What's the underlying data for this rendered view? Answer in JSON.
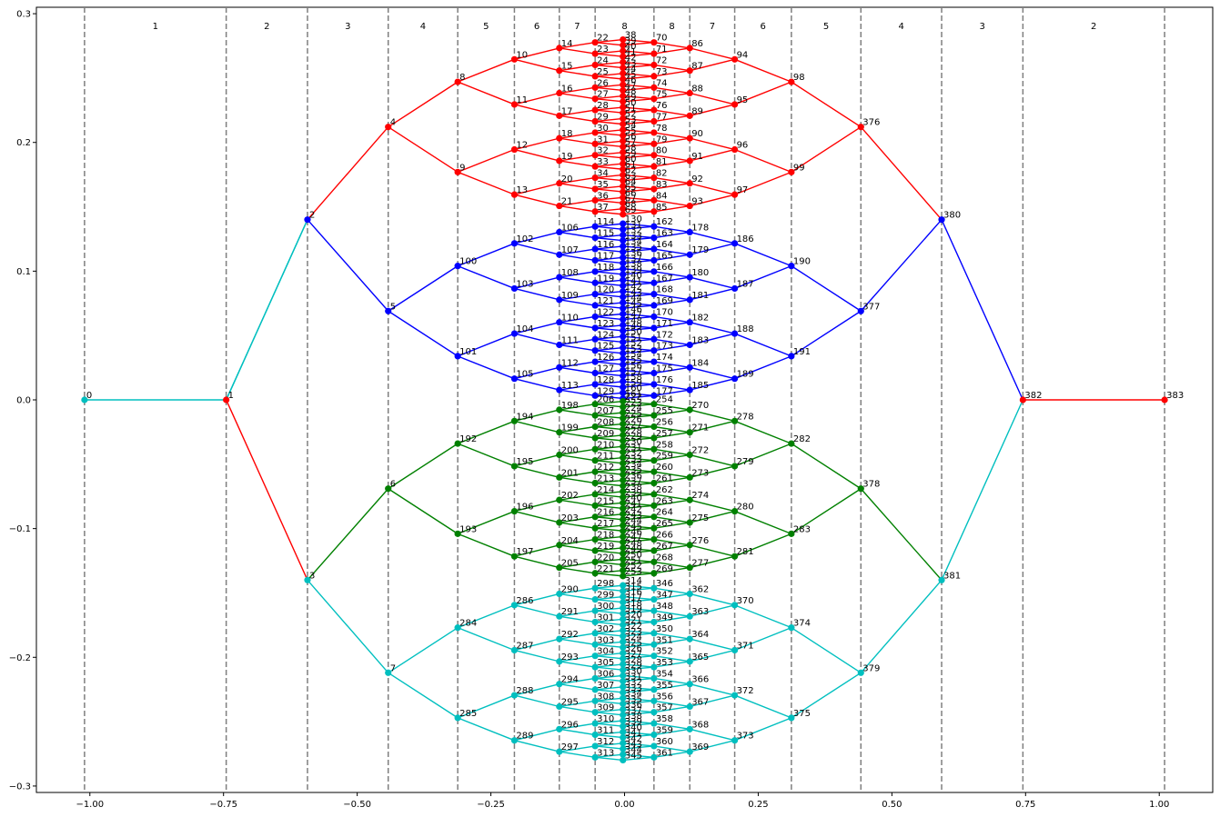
{
  "chart_data": {
    "type": "scatter",
    "title": "",
    "xlabel": "",
    "ylabel": "",
    "xlim": [
      -1.1,
      1.1
    ],
    "ylim": [
      -0.305,
      0.305
    ],
    "x_ticks": [
      -1.0,
      -0.75,
      -0.5,
      -0.25,
      0.0,
      0.25,
      0.5,
      0.75,
      1.0
    ],
    "x_tick_labels": [
      "−1.00",
      "−0.75",
      "−0.50",
      "−0.25",
      "0.00",
      "0.25",
      "0.50",
      "0.75",
      "1.00"
    ],
    "y_ticks": [
      -0.3,
      -0.2,
      -0.1,
      0.0,
      0.1,
      0.2,
      0.3
    ],
    "y_tick_labels": [
      "−0.3",
      "−0.2",
      "−0.1",
      "0.0",
      "0.1",
      "0.2",
      "0.3"
    ],
    "stage_boundaries_x": [
      -1.01,
      -0.745,
      -0.593,
      -0.442,
      -0.312,
      -0.206,
      -0.122,
      -0.055,
      0.055,
      0.122,
      0.206,
      0.312,
      0.442,
      0.593,
      0.745,
      1.01
    ],
    "stage_labels": [
      "1",
      "2",
      "3",
      "4",
      "5",
      "6",
      "7",
      "8",
      "8",
      "7",
      "6",
      "5",
      "4",
      "3",
      "2",
      "1"
    ],
    "series_colors": {
      "red": "#ff0000",
      "blue": "#0000ff",
      "green": "#008000",
      "cyan": "#00bfbf"
    },
    "annotation": "Branching tree network: node 0 → 1 → {2, 3} → {4..7} → … converging to 382 → 383; colour groups red (top), blue, green, cyan (bottom)"
  }
}
